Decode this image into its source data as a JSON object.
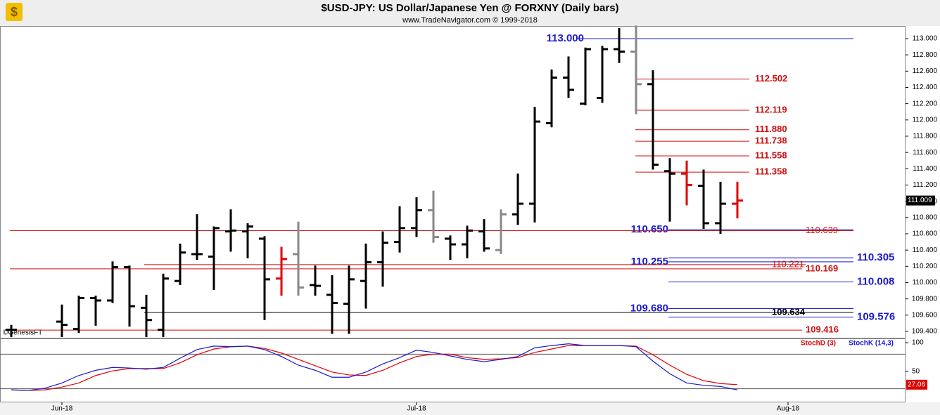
{
  "chart_data": [
    {
      "type": "ohlc",
      "title": "$USD-JPY:  US Dollar/Japanese Yen @ FORXNY  (Daily bars)",
      "subtitle": "www.TradeNavigator.com © 1999-2018",
      "watermark": "©GenesisFT",
      "x": [
        0,
        3,
        4,
        5,
        6,
        7,
        8,
        9,
        10,
        11,
        12,
        13,
        14,
        15,
        16,
        17,
        18,
        19,
        20,
        21,
        22,
        23,
        24,
        25,
        26,
        27,
        28,
        29,
        30,
        31,
        32,
        33,
        34,
        35,
        36,
        37,
        38,
        39,
        40,
        41,
        42,
        43
      ],
      "open": [
        109.42,
        109.52,
        109.43,
        109.81,
        109.78,
        110.19,
        109.69,
        109.42,
        110.02,
        110.35,
        110.32,
        110.63,
        110.63,
        110.54,
        110.05,
        110.35,
        109.97,
        109.85,
        109.74,
        110.02,
        110.25,
        110.5,
        110.67,
        110.89,
        110.54,
        110.47,
        110.63,
        110.4,
        110.84,
        110.97,
        111.96,
        112.52,
        112.2,
        112.27,
        112.87,
        112.84,
        112.44,
        111.37,
        111.34,
        111.19,
        110.73,
        110.97
      ],
      "high": [
        109.48,
        109.73,
        109.84,
        109.84,
        110.26,
        110.21,
        109.85,
        110.11,
        110.48,
        110.84,
        110.69,
        110.9,
        110.73,
        110.57,
        110.44,
        110.75,
        110.21,
        110.09,
        110.21,
        110.48,
        110.63,
        110.94,
        111.05,
        111.13,
        110.58,
        110.7,
        110.78,
        110.9,
        111.34,
        112.16,
        112.62,
        112.78,
        112.89,
        112.91,
        113.13,
        113.16,
        112.61,
        111.53,
        111.5,
        111.39,
        111.24,
        111.24
      ],
      "low": [
        109.33,
        109.33,
        109.38,
        109.47,
        109.75,
        109.46,
        109.33,
        109.33,
        109.97,
        110.28,
        109.91,
        110.38,
        110.3,
        109.54,
        109.84,
        109.84,
        109.84,
        109.37,
        109.37,
        109.68,
        109.95,
        110.37,
        110.56,
        110.49,
        110.28,
        110.3,
        110.38,
        110.35,
        110.71,
        110.74,
        111.91,
        112.27,
        112.18,
        112.21,
        112.7,
        112.07,
        111.39,
        110.75,
        110.95,
        110.66,
        110.6,
        110.79
      ],
      "close": [
        109.42,
        109.48,
        109.81,
        109.78,
        110.19,
        109.71,
        109.54,
        110.05,
        110.37,
        110.35,
        110.67,
        110.64,
        110.69,
        110.04,
        110.29,
        109.94,
        109.96,
        109.75,
        110.04,
        110.25,
        110.49,
        110.67,
        110.89,
        110.56,
        110.47,
        110.64,
        110.42,
        110.84,
        110.97,
        111.98,
        112.52,
        112.37,
        112.87,
        112.87,
        112.84,
        112.44,
        111.45,
        111.34,
        111.2,
        110.73,
        110.97,
        111.009
      ],
      "bar_colors": [
        "#000",
        "#000",
        "#000",
        "#000",
        "#000",
        "#000",
        "#000",
        "#000",
        "#000",
        "#000",
        "#000",
        "#000",
        "#000",
        "#000",
        "#e00000",
        "#888",
        "#000",
        "#000",
        "#000",
        "#000",
        "#000",
        "#000",
        "#000",
        "#888",
        "#000",
        "#000",
        "#000",
        "#888",
        "#000",
        "#000",
        "#000",
        "#000",
        "#000",
        "#000",
        "#000",
        "#888",
        "#000",
        "#000",
        "#e00000",
        "#000",
        "#000",
        "#e00000"
      ],
      "xlim": [
        -0.667,
        52.958
      ],
      "xticks": [
        {
          "value": 3,
          "label": "Jun-18"
        },
        {
          "value": 24,
          "label": "Jul-18"
        },
        {
          "value": 46,
          "label": "Aug-18"
        }
      ],
      "ylim": [
        109.322,
        113.155
      ],
      "yticks": [
        {
          "value": 109.4,
          "label": "109.400"
        },
        {
          "value": 109.6,
          "label": "109.600"
        },
        {
          "value": 109.8,
          "label": "109.800"
        },
        {
          "value": 110,
          "label": "110.000"
        },
        {
          "value": 110.2,
          "label": "110.200"
        },
        {
          "value": 110.4,
          "label": "110.400"
        },
        {
          "value": 110.6,
          "label": "110.600"
        },
        {
          "value": 110.8,
          "label": "110.800"
        },
        {
          "value": 111,
          "label": "111.000"
        },
        {
          "value": 111.2,
          "label": "111.200"
        },
        {
          "value": 111.4,
          "label": "111.400"
        },
        {
          "value": 111.6,
          "label": "111.600"
        },
        {
          "value": 111.8,
          "label": "111.800"
        },
        {
          "value": 112,
          "label": "112.000"
        },
        {
          "value": 112.2,
          "label": "112.200"
        },
        {
          "value": 112.4,
          "label": "112.400"
        },
        {
          "value": 112.6,
          "label": "112.600"
        },
        {
          "value": 112.8,
          "label": "112.800"
        },
        {
          "value": 113,
          "label": "113.000"
        }
      ],
      "levels": [
        {
          "value": 113,
          "label": "113.000",
          "color": "#1a1ad0"
        },
        {
          "value": 112.502,
          "color": "#d01010"
        },
        {
          "value": 112.119,
          "color": "#d01010"
        },
        {
          "value": 111.88,
          "label": "111.880",
          "color": "#d01010"
        },
        {
          "value": 111.738,
          "color": "#d01010"
        },
        {
          "value": 111.558,
          "color": "#d01010"
        },
        {
          "value": 111.358,
          "color": "#d01010"
        },
        {
          "value": 110.65,
          "label": "110.650",
          "color": "#1a1ad0"
        },
        {
          "value": 110.639,
          "color": "#d01010"
        },
        {
          "value": 110.305,
          "color": "#1a1ad0"
        },
        {
          "value": 110.255,
          "color": "#1a1ad0"
        },
        {
          "value": 110.221,
          "color": "#d01010"
        },
        {
          "value": 110.169,
          "color": "#d01010"
        },
        {
          "value": 110.008,
          "color": "#1a1ad0"
        },
        {
          "value": 109.68,
          "label": "109.680",
          "color": "#1a1ad0"
        },
        {
          "value": 109.634,
          "color": "#000000"
        },
        {
          "value": 109.576,
          "color": "#1a1ad0"
        },
        {
          "value": 109.416,
          "color": "#d01010"
        }
      ]
    },
    {
      "type": "line",
      "x": [
        0,
        1,
        2,
        3,
        4,
        5,
        6,
        7,
        8,
        9,
        10,
        11,
        12,
        13,
        14,
        15,
        16,
        17,
        18,
        19,
        20,
        21,
        22,
        23,
        24,
        25,
        26,
        27,
        28,
        29,
        30,
        31,
        32,
        33,
        34,
        35,
        36,
        37,
        38,
        39,
        40,
        41,
        42,
        43
      ],
      "series": [
        {
          "name": "StochD (3)",
          "color": "#e00000",
          "values": [
            18,
            17,
            18,
            23,
            30,
            43,
            51,
            55,
            55,
            55,
            65,
            79,
            89,
            93,
            94,
            90,
            82,
            71,
            60,
            49,
            44,
            43,
            52,
            65,
            76,
            80,
            80,
            74,
            71,
            72,
            74,
            83,
            89,
            95,
            95,
            95,
            95,
            94,
            79,
            61,
            45,
            34,
            29,
            27.06
          ]
        },
        {
          "name": "StochK (14,3)",
          "color": "#1a1ad0",
          "values": [
            18,
            17,
            21,
            30,
            43,
            52,
            57,
            56,
            54,
            57,
            73,
            88,
            94,
            93,
            94,
            88,
            76,
            61,
            52,
            40,
            40,
            49,
            63,
            74,
            87,
            83,
            77,
            71,
            67,
            71,
            76,
            91,
            95,
            98,
            95,
            95,
            95,
            93,
            68,
            46,
            30,
            26,
            24,
            18
          ]
        }
      ],
      "xlim": [
        -0.667,
        52.958
      ],
      "ylim": [
        -2.4,
        107.3
      ],
      "yticks": [
        50,
        100
      ],
      "levels": [
        80,
        20
      ]
    }
  ]
}
